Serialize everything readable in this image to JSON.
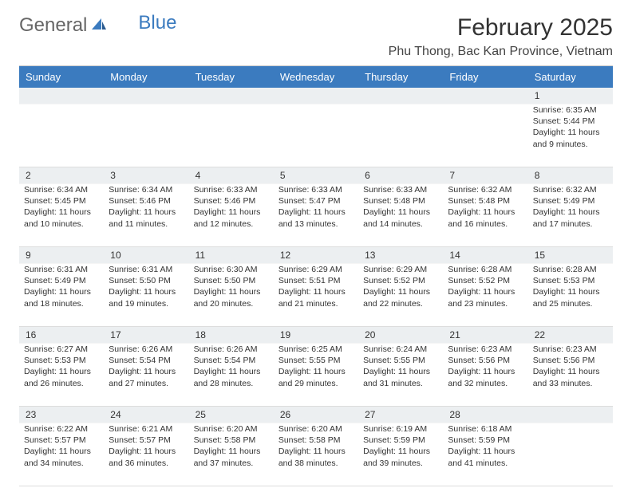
{
  "logo": {
    "text1": "General",
    "text2": "Blue"
  },
  "title": "February 2025",
  "location": "Phu Thong, Bac Kan Province, Vietnam",
  "colors": {
    "header_bg": "#3b7bbf",
    "header_text": "#ffffff",
    "band_bg": "#eceff1",
    "border": "#dddddd",
    "text": "#333333",
    "logo_gray": "#666666",
    "logo_blue": "#3b7bbf"
  },
  "fonts": {
    "title_size": 30,
    "location_size": 16,
    "header_size": 13,
    "cell_size": 10.5
  },
  "day_names": [
    "Sunday",
    "Monday",
    "Tuesday",
    "Wednesday",
    "Thursday",
    "Friday",
    "Saturday"
  ],
  "weeks": [
    {
      "nums": [
        "",
        "",
        "",
        "",
        "",
        "",
        "1"
      ],
      "cells": [
        {
          "sunrise": "",
          "sunset": "",
          "daylight": ""
        },
        {
          "sunrise": "",
          "sunset": "",
          "daylight": ""
        },
        {
          "sunrise": "",
          "sunset": "",
          "daylight": ""
        },
        {
          "sunrise": "",
          "sunset": "",
          "daylight": ""
        },
        {
          "sunrise": "",
          "sunset": "",
          "daylight": ""
        },
        {
          "sunrise": "",
          "sunset": "",
          "daylight": ""
        },
        {
          "sunrise": "Sunrise: 6:35 AM",
          "sunset": "Sunset: 5:44 PM",
          "daylight": "Daylight: 11 hours and 9 minutes."
        }
      ]
    },
    {
      "nums": [
        "2",
        "3",
        "4",
        "5",
        "6",
        "7",
        "8"
      ],
      "cells": [
        {
          "sunrise": "Sunrise: 6:34 AM",
          "sunset": "Sunset: 5:45 PM",
          "daylight": "Daylight: 11 hours and 10 minutes."
        },
        {
          "sunrise": "Sunrise: 6:34 AM",
          "sunset": "Sunset: 5:46 PM",
          "daylight": "Daylight: 11 hours and 11 minutes."
        },
        {
          "sunrise": "Sunrise: 6:33 AM",
          "sunset": "Sunset: 5:46 PM",
          "daylight": "Daylight: 11 hours and 12 minutes."
        },
        {
          "sunrise": "Sunrise: 6:33 AM",
          "sunset": "Sunset: 5:47 PM",
          "daylight": "Daylight: 11 hours and 13 minutes."
        },
        {
          "sunrise": "Sunrise: 6:33 AM",
          "sunset": "Sunset: 5:48 PM",
          "daylight": "Daylight: 11 hours and 14 minutes."
        },
        {
          "sunrise": "Sunrise: 6:32 AM",
          "sunset": "Sunset: 5:48 PM",
          "daylight": "Daylight: 11 hours and 16 minutes."
        },
        {
          "sunrise": "Sunrise: 6:32 AM",
          "sunset": "Sunset: 5:49 PM",
          "daylight": "Daylight: 11 hours and 17 minutes."
        }
      ]
    },
    {
      "nums": [
        "9",
        "10",
        "11",
        "12",
        "13",
        "14",
        "15"
      ],
      "cells": [
        {
          "sunrise": "Sunrise: 6:31 AM",
          "sunset": "Sunset: 5:49 PM",
          "daylight": "Daylight: 11 hours and 18 minutes."
        },
        {
          "sunrise": "Sunrise: 6:31 AM",
          "sunset": "Sunset: 5:50 PM",
          "daylight": "Daylight: 11 hours and 19 minutes."
        },
        {
          "sunrise": "Sunrise: 6:30 AM",
          "sunset": "Sunset: 5:50 PM",
          "daylight": "Daylight: 11 hours and 20 minutes."
        },
        {
          "sunrise": "Sunrise: 6:29 AM",
          "sunset": "Sunset: 5:51 PM",
          "daylight": "Daylight: 11 hours and 21 minutes."
        },
        {
          "sunrise": "Sunrise: 6:29 AM",
          "sunset": "Sunset: 5:52 PM",
          "daylight": "Daylight: 11 hours and 22 minutes."
        },
        {
          "sunrise": "Sunrise: 6:28 AM",
          "sunset": "Sunset: 5:52 PM",
          "daylight": "Daylight: 11 hours and 23 minutes."
        },
        {
          "sunrise": "Sunrise: 6:28 AM",
          "sunset": "Sunset: 5:53 PM",
          "daylight": "Daylight: 11 hours and 25 minutes."
        }
      ]
    },
    {
      "nums": [
        "16",
        "17",
        "18",
        "19",
        "20",
        "21",
        "22"
      ],
      "cells": [
        {
          "sunrise": "Sunrise: 6:27 AM",
          "sunset": "Sunset: 5:53 PM",
          "daylight": "Daylight: 11 hours and 26 minutes."
        },
        {
          "sunrise": "Sunrise: 6:26 AM",
          "sunset": "Sunset: 5:54 PM",
          "daylight": "Daylight: 11 hours and 27 minutes."
        },
        {
          "sunrise": "Sunrise: 6:26 AM",
          "sunset": "Sunset: 5:54 PM",
          "daylight": "Daylight: 11 hours and 28 minutes."
        },
        {
          "sunrise": "Sunrise: 6:25 AM",
          "sunset": "Sunset: 5:55 PM",
          "daylight": "Daylight: 11 hours and 29 minutes."
        },
        {
          "sunrise": "Sunrise: 6:24 AM",
          "sunset": "Sunset: 5:55 PM",
          "daylight": "Daylight: 11 hours and 31 minutes."
        },
        {
          "sunrise": "Sunrise: 6:23 AM",
          "sunset": "Sunset: 5:56 PM",
          "daylight": "Daylight: 11 hours and 32 minutes."
        },
        {
          "sunrise": "Sunrise: 6:23 AM",
          "sunset": "Sunset: 5:56 PM",
          "daylight": "Daylight: 11 hours and 33 minutes."
        }
      ]
    },
    {
      "nums": [
        "23",
        "24",
        "25",
        "26",
        "27",
        "28",
        ""
      ],
      "cells": [
        {
          "sunrise": "Sunrise: 6:22 AM",
          "sunset": "Sunset: 5:57 PM",
          "daylight": "Daylight: 11 hours and 34 minutes."
        },
        {
          "sunrise": "Sunrise: 6:21 AM",
          "sunset": "Sunset: 5:57 PM",
          "daylight": "Daylight: 11 hours and 36 minutes."
        },
        {
          "sunrise": "Sunrise: 6:20 AM",
          "sunset": "Sunset: 5:58 PM",
          "daylight": "Daylight: 11 hours and 37 minutes."
        },
        {
          "sunrise": "Sunrise: 6:20 AM",
          "sunset": "Sunset: 5:58 PM",
          "daylight": "Daylight: 11 hours and 38 minutes."
        },
        {
          "sunrise": "Sunrise: 6:19 AM",
          "sunset": "Sunset: 5:59 PM",
          "daylight": "Daylight: 11 hours and 39 minutes."
        },
        {
          "sunrise": "Sunrise: 6:18 AM",
          "sunset": "Sunset: 5:59 PM",
          "daylight": "Daylight: 11 hours and 41 minutes."
        },
        {
          "sunrise": "",
          "sunset": "",
          "daylight": ""
        }
      ]
    }
  ]
}
